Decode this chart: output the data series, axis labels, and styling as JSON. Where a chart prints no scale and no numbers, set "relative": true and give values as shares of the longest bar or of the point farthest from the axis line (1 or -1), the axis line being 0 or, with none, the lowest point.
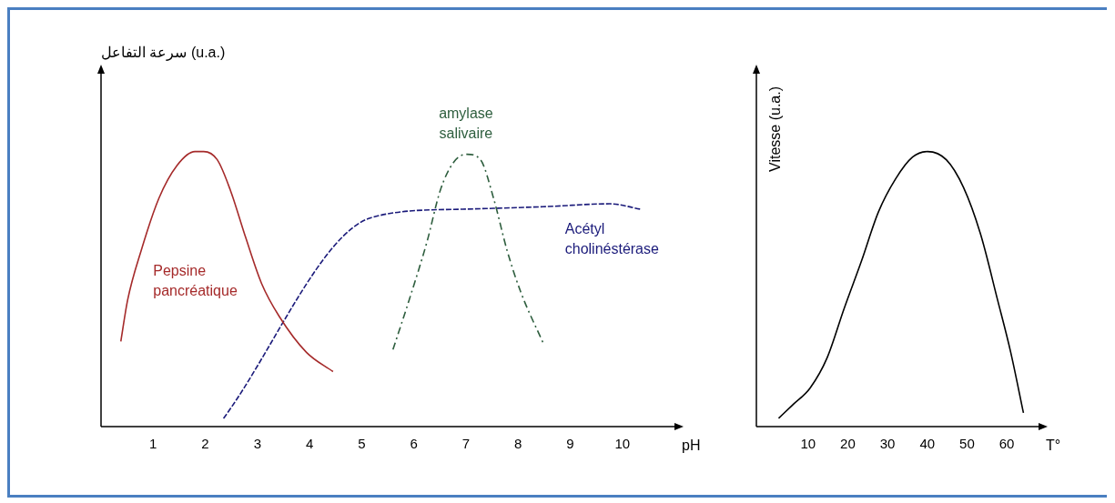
{
  "chart_data": [
    {
      "type": "line",
      "relative": true,
      "ylabel": "سرعة التفاعل (u.a.)",
      "xlabel": "pH",
      "xlim": [
        0,
        11
      ],
      "xticks": [
        1,
        2,
        3,
        4,
        5,
        6,
        7,
        8,
        9,
        10
      ],
      "tick_labels": "x",
      "grid": false,
      "legend": false,
      "marker": "none",
      "series": [
        {
          "name": "Pepsine pancréatique",
          "color": "#a52a2a",
          "line_style": "solid",
          "x": [
            0.38,
            0.51,
            0.77,
            1.11,
            1.46,
            1.8,
            1.97,
            2.23,
            2.48,
            2.77,
            3.08,
            3.42,
            3.94,
            4.45
          ],
          "values": [
            0.31,
            0.46,
            0.64,
            0.83,
            0.95,
            1.0,
            1.0,
            0.97,
            0.86,
            0.69,
            0.52,
            0.4,
            0.27,
            0.2
          ]
        },
        {
          "name": "Acétyl cholinéstérase",
          "color": "#1a1a7a",
          "line_style": "dashed",
          "x": [
            2.35,
            5.19,
            6.85,
            8.56,
            9.76,
            10.36
          ],
          "values": [
            0.03,
            0.76,
            0.79,
            0.8,
            0.81,
            0.79
          ]
        },
        {
          "name": "amylase salivaire",
          "color": "#2e5e3e",
          "line_style": "dotted",
          "x": [
            5.6,
            5.91,
            6.25,
            6.51,
            6.76,
            7.02,
            7.28,
            7.53,
            7.79,
            8.05,
            8.49
          ],
          "values": [
            0.28,
            0.46,
            0.67,
            0.86,
            0.96,
            0.99,
            0.97,
            0.83,
            0.64,
            0.49,
            0.3
          ]
        }
      ]
    },
    {
      "type": "line",
      "relative": true,
      "ylabel": "Vitesse (u.a.)",
      "xlabel": "T°",
      "xlim": [
        -3,
        68
      ],
      "xticks": [
        10,
        20,
        30,
        40,
        50,
        60
      ],
      "tick_labels": "x",
      "grid": false,
      "legend": false,
      "marker": "none",
      "series": [
        {
          "color": "#000000",
          "line_style": "solid",
          "x": [
            2.6,
            6.2,
            10.5,
            14.8,
            19.1,
            23.4,
            27.7,
            32,
            36.3,
            40.1,
            44.8,
            49.1,
            53.4,
            57.7,
            61,
            64.2
          ],
          "values": [
            0.03,
            0.08,
            0.14,
            0.25,
            0.43,
            0.6,
            0.78,
            0.9,
            0.98,
            1.0,
            0.97,
            0.87,
            0.7,
            0.46,
            0.27,
            0.05
          ]
        }
      ]
    }
  ]
}
